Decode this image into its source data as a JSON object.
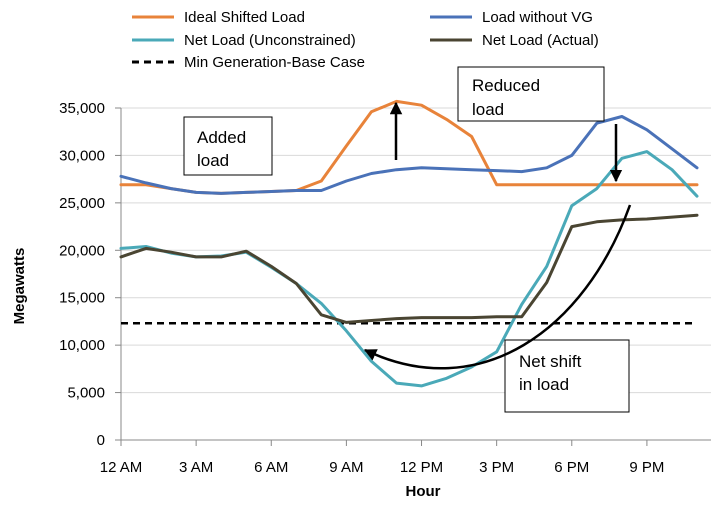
{
  "chart_data": {
    "type": "line",
    "xlabel": "Hour",
    "ylabel": "Megawatts",
    "ylim": [
      0,
      35000
    ],
    "xlim": [
      0,
      23
    ],
    "yticks": [
      0,
      5000,
      10000,
      15000,
      20000,
      25000,
      30000,
      35000
    ],
    "ytick_labels": [
      "0",
      "5,000",
      "10,000",
      "15,000",
      "20,000",
      "25,000",
      "30,000",
      "35,000"
    ],
    "xtick_positions": [
      0,
      3,
      6,
      9,
      12,
      15,
      18,
      21
    ],
    "xtick_labels": [
      "12 AM",
      "3 AM",
      "6 AM",
      "9 AM",
      "12 PM",
      "3 PM",
      "6 PM",
      "9 PM"
    ],
    "grid": "horizontal",
    "legend_position": "top",
    "x": [
      0,
      1,
      2,
      3,
      4,
      5,
      6,
      7,
      8,
      9,
      10,
      11,
      12,
      13,
      14,
      15,
      16,
      17,
      18,
      19,
      20,
      21,
      22,
      23
    ],
    "series": [
      {
        "name": "Ideal Shifted Load",
        "color": "#e8833a",
        "values": [
          26900,
          26900,
          26500,
          26100,
          26000,
          26100,
          26200,
          26300,
          27300,
          31000,
          34600,
          35700,
          35300,
          33800,
          32000,
          26900,
          26900,
          26900,
          26900,
          26900,
          26900,
          26900,
          26900,
          26900
        ]
      },
      {
        "name": "Load without VG",
        "color": "#4a72b8",
        "values": [
          27800,
          27100,
          26500,
          26100,
          26000,
          26100,
          26200,
          26300,
          26300,
          27300,
          28100,
          28500,
          28700,
          28600,
          28500,
          28400,
          28300,
          28700,
          30000,
          33400,
          34100,
          32700,
          30700,
          28700
        ]
      },
      {
        "name": "Net Load (Unconstrained)",
        "color": "#4aa9b8",
        "values": [
          20200,
          20400,
          19700,
          19300,
          19400,
          19800,
          18200,
          16500,
          14400,
          11500,
          8300,
          6000,
          5700,
          6500,
          7700,
          9300,
          14300,
          18300,
          24700,
          26500,
          29700,
          30400,
          28500,
          25700
        ]
      },
      {
        "name": "Net Load (Actual)",
        "color": "#4a4532",
        "values": [
          19300,
          20200,
          19800,
          19300,
          19300,
          19900,
          18300,
          16500,
          13200,
          12400,
          12600,
          12800,
          12900,
          12900,
          12900,
          13000,
          13000,
          16600,
          22500,
          23000,
          23200,
          23300,
          23500,
          23700
        ]
      },
      {
        "name": "Min Generation-Base Case",
        "color": "#000000",
        "dashed": true,
        "values": [
          12300,
          12300,
          12300,
          12300,
          12300,
          12300,
          12300,
          12300,
          12300,
          12300,
          12300,
          12300,
          12300,
          12300,
          12300,
          12300,
          12300,
          12300,
          12300,
          12300,
          12300,
          12300,
          12300,
          12300
        ]
      }
    ],
    "annotations": [
      {
        "text": [
          "Added",
          "load"
        ]
      },
      {
        "text": [
          "Reduced",
          "load"
        ]
      },
      {
        "text": [
          "Net shift",
          "in load"
        ]
      }
    ]
  }
}
